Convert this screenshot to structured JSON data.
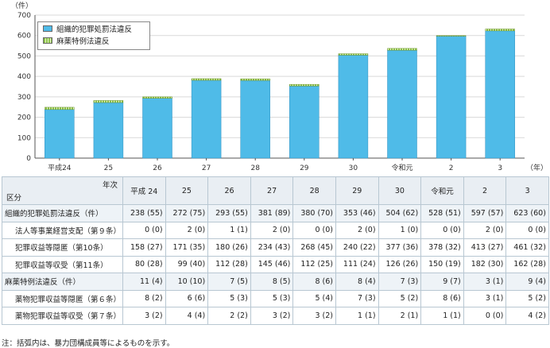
{
  "chart_data": {
    "type": "bar",
    "stacked": true,
    "unit_label": "（件）",
    "x_unit_label": "（年）",
    "categories": [
      "平成24",
      "25",
      "26",
      "27",
      "28",
      "29",
      "30",
      "令和元",
      "2",
      "3"
    ],
    "series": [
      {
        "name": "組織的犯罪処罰法違反",
        "color": "#4fbbe8",
        "values": [
          238,
          272,
          293,
          381,
          380,
          353,
          504,
          528,
          597,
          623
        ]
      },
      {
        "name": "麻薬特例法違反",
        "color": "#8bc34a",
        "values": [
          11,
          10,
          7,
          8,
          8,
          8,
          7,
          9,
          3,
          9
        ]
      }
    ],
    "ylim": [
      0,
      700
    ],
    "yticks": [
      0,
      100,
      200,
      300,
      400,
      500,
      600,
      700
    ],
    "legend": "top-left"
  },
  "table": {
    "header_year_label": "年次",
    "header_kubun_label": "区分",
    "columns": [
      "平成 24",
      "25",
      "26",
      "27",
      "28",
      "29",
      "30",
      "令和元",
      "2",
      "3"
    ],
    "rows": [
      {
        "label": "組織的犯罪処罰法違反（件）",
        "type": "group",
        "cells": [
          "238 (55)",
          "272 (75)",
          "293 (55)",
          "381 (89)",
          "380 (70)",
          "353 (46)",
          "504 (62)",
          "528 (51)",
          "597 (57)",
          "623 (60)"
        ]
      },
      {
        "label": "法人等事業経営支配（第９条）",
        "type": "sub",
        "cells": [
          "0 (0)",
          "2 (0)",
          "1 (1)",
          "2 (0)",
          "0 (0)",
          "2 (0)",
          "1 (0)",
          "0 (0)",
          "2 (0)",
          "0 (0)"
        ]
      },
      {
        "label": "犯罪収益等隠匿（第10条）",
        "type": "sub",
        "cells": [
          "158 (27)",
          "171 (35)",
          "180 (26)",
          "234 (43)",
          "268 (45)",
          "240 (22)",
          "377 (36)",
          "378 (32)",
          "413 (27)",
          "461 (32)"
        ]
      },
      {
        "label": "犯罪収益等収受（第11条）",
        "type": "sub",
        "cells": [
          "80 (28)",
          "99 (40)",
          "112 (28)",
          "145 (46)",
          "112 (25)",
          "111 (24)",
          "126 (26)",
          "150 (19)",
          "182 (30)",
          "162 (28)"
        ]
      },
      {
        "label": "麻薬特例法違反（件）",
        "type": "group",
        "cells": [
          "11 (4)",
          "10 (10)",
          "7 (5)",
          "8 (5)",
          "8 (6)",
          "8 (4)",
          "7 (3)",
          "9 (7)",
          "3 (1)",
          "9 (4)"
        ]
      },
      {
        "label": "薬物犯罪収益等隠匿（第６条）",
        "type": "sub",
        "cells": [
          "8 (2)",
          "6 (6)",
          "5 (3)",
          "5 (3)",
          "5 (4)",
          "7 (3)",
          "5 (2)",
          "8 (6)",
          "3 (1)",
          "5 (2)"
        ]
      },
      {
        "label": "薬物犯罪収益等収受（第７条）",
        "type": "sub",
        "cells": [
          "3 (2)",
          "4 (4)",
          "2 (2)",
          "3 (2)",
          "3 (2)",
          "1 (1)",
          "2 (1)",
          "1 (1)",
          "0 (0)",
          "4 (2)"
        ]
      }
    ]
  },
  "note": "注：括弧内は、暴力団構成員等によるものを示す。"
}
